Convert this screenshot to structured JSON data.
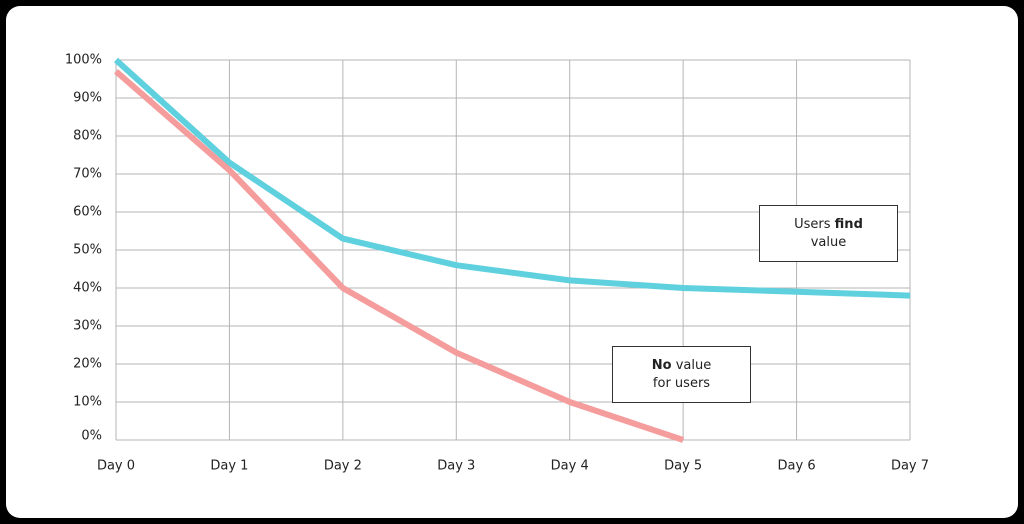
{
  "chart_data": {
    "type": "line",
    "categories": [
      "Day 0",
      "Day 1",
      "Day 2",
      "Day 3",
      "Day 4",
      "Day 5",
      "Day 6",
      "Day 7"
    ],
    "series": [
      {
        "name": "Users find value",
        "color": "#5fd0de",
        "values": [
          100,
          73,
          53,
          46,
          42,
          40,
          39,
          38
        ]
      },
      {
        "name": "No value for users",
        "color": "#f59c9c",
        "values": [
          97,
          71,
          40,
          23,
          10,
          0,
          null,
          null
        ]
      }
    ],
    "ylim": [
      0,
      100
    ],
    "yticks": [
      {
        "value": 0,
        "label": "0%"
      },
      {
        "value": 10,
        "label": "10%"
      },
      {
        "value": 20,
        "label": "20%"
      },
      {
        "value": 30,
        "label": "30%"
      },
      {
        "value": 40,
        "label": "40%"
      },
      {
        "value": 50,
        "label": "50%"
      },
      {
        "value": 60,
        "label": "60%"
      },
      {
        "value": 70,
        "label": "70%"
      },
      {
        "value": 80,
        "label": "80%"
      },
      {
        "value": 90,
        "label": "90%"
      },
      {
        "value": 100,
        "label": "100%"
      }
    ],
    "grid": true,
    "annotations": [
      {
        "parts": [
          {
            "text": "Users"
          },
          {
            "text": "find"
          },
          {
            "text": "value"
          }
        ]
      },
      {
        "parts": [
          {
            "text": "No"
          },
          {
            "text": "value"
          },
          {
            "text": "for users"
          }
        ]
      }
    ]
  }
}
